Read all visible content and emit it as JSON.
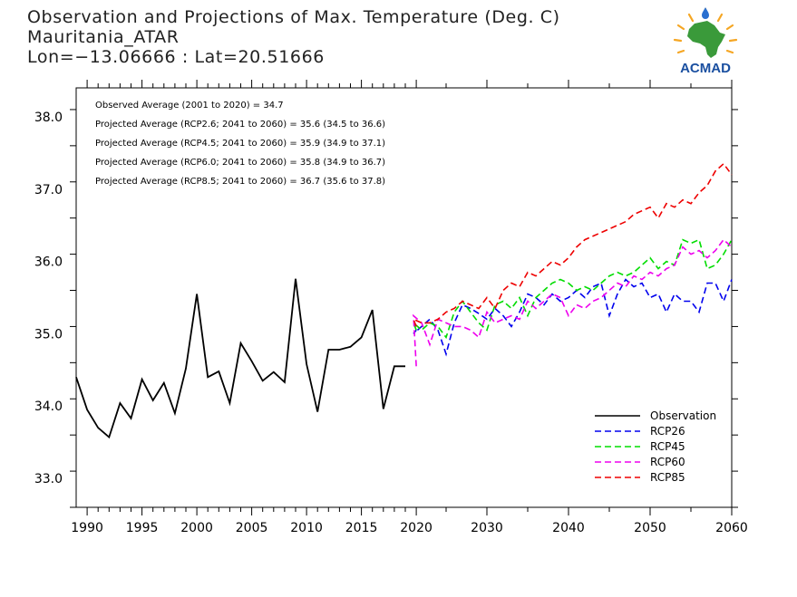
{
  "header": {
    "title": "Observation and Projections of Max. Temperature (Deg. C)",
    "location": "Mauritania_ATAR",
    "coords": "Lon=−13.06666 : Lat=20.51666"
  },
  "logo": {
    "text": "ACMAD",
    "color": "#1a4fa0",
    "sun_color": "#f5a623",
    "africa_color": "#3a9a3a"
  },
  "chart_data": {
    "type": "line",
    "xlim": [
      1989,
      2060
    ],
    "ylim": [
      32.6,
      38.4
    ],
    "x_ticks": [
      1990,
      1995,
      2000,
      2005,
      2010,
      2015,
      2020,
      2030,
      2040,
      2050,
      2060
    ],
    "y_ticks": [
      33.0,
      34.0,
      35.0,
      36.0,
      37.0,
      38.0
    ],
    "y_tick_labels": [
      "33.0",
      "34.0",
      "35.0",
      "36.0",
      "37.0",
      "38.0"
    ],
    "annotations": [
      "Observed Average (2001 to 2020) = 34.7",
      "Projected Average (RCP2.6; 2041 to 2060) = 35.6 (34.5 to 36.6)",
      "Projected Average (RCP4.5; 2041 to 2060) = 35.9 (34.9 to 37.1)",
      "Projected Average (RCP6.0; 2041 to 2060) = 35.8 (34.9 to 36.7)",
      "Projected Average (RCP8.5; 2041 to 2060) = 36.7 (35.6 to 37.8)"
    ],
    "legend_position": "bottom-right",
    "series": [
      {
        "name": "Observation",
        "color": "#000000",
        "dash": "solid",
        "x": [
          1989,
          1990,
          1991,
          1992,
          1993,
          1994,
          1995,
          1996,
          1997,
          1998,
          1999,
          2000,
          2001,
          2002,
          2003,
          2004,
          2005,
          2006,
          2007,
          2008,
          2009,
          2010,
          2011,
          2012,
          2013,
          2014,
          2015,
          2016,
          2017,
          2018,
          2019
        ],
        "values": [
          34.4,
          33.95,
          33.7,
          33.57,
          34.04,
          33.83,
          34.37,
          34.08,
          34.32,
          33.9,
          34.52,
          35.55,
          34.4,
          34.48,
          34.04,
          34.87,
          34.62,
          34.35,
          34.47,
          34.33,
          35.76,
          34.58,
          33.92,
          34.78,
          34.78,
          34.82,
          34.95,
          35.33,
          33.96,
          34.55,
          34.55
        ]
      },
      {
        "name": "RCP26",
        "color": "#0000ee",
        "dash": "dashed",
        "x": [
          2020,
          2021,
          2022,
          2023,
          2024,
          2025,
          2026,
          2027,
          2028,
          2029,
          2030,
          2031,
          2032,
          2033,
          2034,
          2035,
          2036,
          2037,
          2038,
          2039,
          2040,
          2041,
          2042,
          2043,
          2044,
          2045,
          2046,
          2047,
          2048,
          2049,
          2050,
          2051,
          2052,
          2053,
          2054,
          2055,
          2056,
          2057,
          2058,
          2059,
          2060
        ],
        "values": [
          35.05,
          35.0,
          35.1,
          35.2,
          35.05,
          34.72,
          35.15,
          35.4,
          35.35,
          35.28,
          35.2,
          35.35,
          35.25,
          35.1,
          35.3,
          35.55,
          35.5,
          35.4,
          35.55,
          35.45,
          35.5,
          35.6,
          35.5,
          35.65,
          35.7,
          35.25,
          35.55,
          35.75,
          35.65,
          35.7,
          35.5,
          35.55,
          35.3,
          35.55,
          35.45,
          35.45,
          35.3,
          35.7,
          35.7,
          35.45,
          35.75
        ]
      },
      {
        "name": "RCP45",
        "color": "#00dd00",
        "dash": "dashed",
        "x": [
          2020,
          2021,
          2022,
          2023,
          2024,
          2025,
          2026,
          2027,
          2028,
          2029,
          2030,
          2031,
          2032,
          2033,
          2034,
          2035,
          2036,
          2037,
          2038,
          2039,
          2040,
          2041,
          2042,
          2043,
          2044,
          2045,
          2046,
          2047,
          2048,
          2049,
          2050,
          2051,
          2052,
          2053,
          2054,
          2055,
          2056,
          2057,
          2058,
          2059,
          2060
        ],
        "values": [
          35.05,
          35.15,
          35.05,
          35.15,
          35.1,
          34.95,
          35.3,
          35.45,
          35.3,
          35.15,
          35.05,
          35.4,
          35.45,
          35.35,
          35.5,
          35.25,
          35.5,
          35.6,
          35.7,
          35.75,
          35.7,
          35.6,
          35.65,
          35.6,
          35.7,
          35.8,
          35.85,
          35.8,
          35.85,
          35.95,
          36.05,
          35.9,
          36.0,
          35.95,
          36.3,
          36.25,
          36.3,
          35.9,
          35.95,
          36.1,
          36.3
        ]
      },
      {
        "name": "RCP60",
        "color": "#ee00ee",
        "dash": "dashed",
        "x": [
          2020,
          2021,
          2022,
          2023,
          2024,
          2025,
          2026,
          2027,
          2028,
          2029,
          2030,
          2031,
          2032,
          2033,
          2034,
          2035,
          2036,
          2037,
          2038,
          2039,
          2040,
          2041,
          2042,
          2043,
          2044,
          2045,
          2046,
          2047,
          2048,
          2049,
          2050,
          2051,
          2052,
          2053,
          2054,
          2055,
          2056,
          2057,
          2058,
          2059,
          2060
        ],
        "values": [
          34.55,
          35.25,
          35.15,
          34.85,
          35.2,
          35.15,
          35.1,
          35.1,
          35.05,
          34.95,
          35.3,
          35.15,
          35.2,
          35.25,
          35.2,
          35.45,
          35.35,
          35.45,
          35.55,
          35.5,
          35.25,
          35.4,
          35.35,
          35.45,
          35.5,
          35.6,
          35.7,
          35.65,
          35.8,
          35.75,
          35.85,
          35.8,
          35.9,
          35.95,
          36.2,
          36.1,
          36.15,
          36.05,
          36.15,
          36.3,
          36.2
        ]
      },
      {
        "name": "RCP85",
        "color": "#ee0000",
        "dash": "dashed",
        "x": [
          2020,
          2021,
          2022,
          2023,
          2024,
          2025,
          2026,
          2027,
          2028,
          2029,
          2030,
          2031,
          2032,
          2033,
          2034,
          2035,
          2036,
          2037,
          2038,
          2039,
          2040,
          2041,
          2042,
          2043,
          2044,
          2045,
          2046,
          2047,
          2048,
          2049,
          2050,
          2051,
          2052,
          2053,
          2054,
          2055,
          2056,
          2057,
          2058,
          2059,
          2060
        ],
        "values": [
          35.1,
          35.2,
          35.15,
          35.15,
          35.2,
          35.3,
          35.35,
          35.45,
          35.4,
          35.35,
          35.5,
          35.35,
          35.6,
          35.7,
          35.65,
          35.85,
          35.8,
          35.9,
          36.0,
          35.95,
          36.05,
          36.2,
          36.3,
          36.35,
          36.4,
          36.45,
          36.5,
          36.55,
          36.65,
          36.7,
          36.75,
          36.6,
          36.8,
          36.75,
          36.85,
          36.8,
          36.95,
          37.05,
          37.25,
          37.35,
          37.2
        ]
      }
    ]
  }
}
